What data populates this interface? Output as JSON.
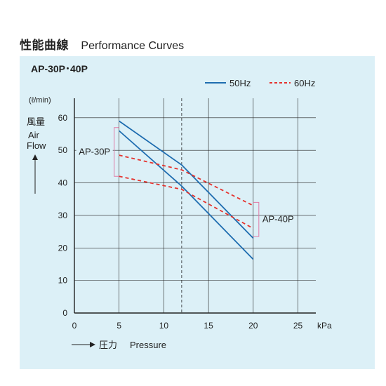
{
  "header": {
    "title_jp": "性能曲線",
    "title_en": "Performance Curves"
  },
  "chart_data": {
    "type": "line",
    "model": "AP-30P･40P",
    "xlabel_jp": "圧力",
    "xlabel": "Pressure",
    "xunit": "kPa",
    "ylabel_jp": "風量",
    "ylabel": "Air Flow",
    "yunit": "(ℓ/min)",
    "xlim": [
      0,
      27
    ],
    "ylim": [
      0,
      66
    ],
    "xticks": [
      0,
      5,
      10,
      15,
      20,
      25
    ],
    "yticks": [
      0,
      10,
      20,
      30,
      40,
      50,
      60
    ],
    "grid": true,
    "reference_x": 12,
    "legend": {
      "position": "top-right",
      "entries": [
        {
          "label": "50Hz",
          "style": "solid",
          "color": "#1f6db0"
        },
        {
          "label": "60Hz",
          "style": "dashed",
          "color": "#e5322d"
        }
      ]
    },
    "series": [
      {
        "group": "AP-40P",
        "frequency": "50Hz",
        "color": "#1f6db0",
        "dash": false,
        "x": [
          5,
          12,
          20
        ],
        "y": [
          59,
          45.5,
          23
        ]
      },
      {
        "group": "AP-30P",
        "frequency": "50Hz",
        "color": "#1f6db0",
        "dash": false,
        "x": [
          5,
          12,
          20
        ],
        "y": [
          56,
          39,
          16.5
        ]
      },
      {
        "group": "AP-30P",
        "frequency": "60Hz",
        "color": "#e5322d",
        "dash": true,
        "x": [
          5,
          12,
          20
        ],
        "y": [
          48.5,
          44,
          33
        ]
      },
      {
        "group": "AP-40P",
        "frequency": "60Hz",
        "color": "#e5322d",
        "dash": true,
        "x": [
          5,
          12,
          20
        ],
        "y": [
          42,
          38,
          26
        ]
      }
    ],
    "annotations": [
      {
        "label": "AP-30P",
        "bracket_x": 5,
        "bracket_y": [
          42,
          57
        ],
        "side": "left"
      },
      {
        "label": "AP-40P",
        "bracket_x": 20,
        "bracket_y": [
          23.5,
          34
        ],
        "side": "right"
      }
    ]
  }
}
